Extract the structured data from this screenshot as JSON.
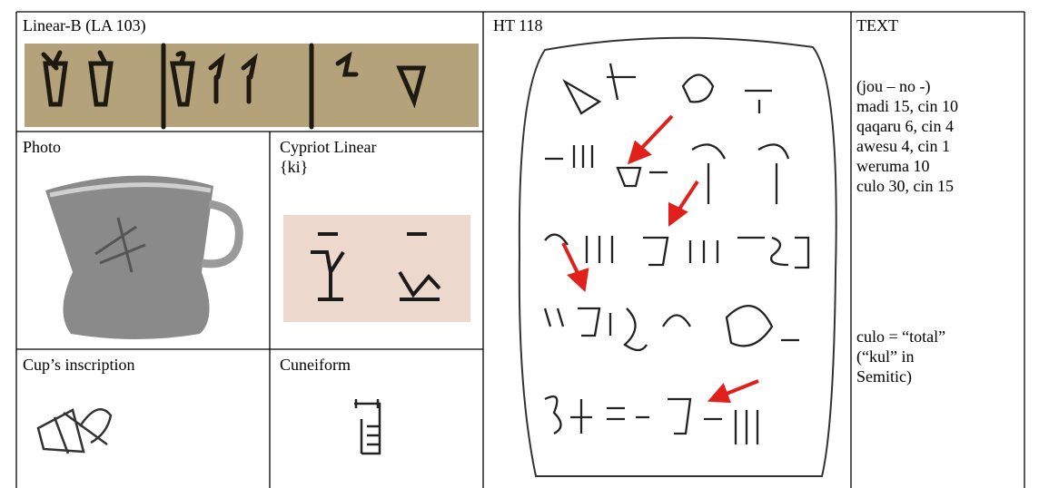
{
  "table": {
    "linear_b": {
      "title": "Linear-B (LA 103)"
    },
    "photo": {
      "title": "Photo"
    },
    "cypriot": {
      "title": [
        "Cypriot Linear",
        "{ki}"
      ]
    },
    "cup_inscription": {
      "title": "Cup’s inscription"
    },
    "cuneiform": {
      "title": "Cuneiform"
    },
    "tablet": {
      "title": "HT 118"
    },
    "text": {
      "title": "TEXT",
      "lines": [
        "(jou – no -)",
        "madi 15, cin 10",
        "qaqaru 6, cin 4",
        "awesu 4, cin 1",
        "weruma 10",
        "culo 30, cin 15"
      ],
      "note": [
        "culo = “total”",
        "(“kul” in",
        "Semitic)"
      ]
    }
  }
}
